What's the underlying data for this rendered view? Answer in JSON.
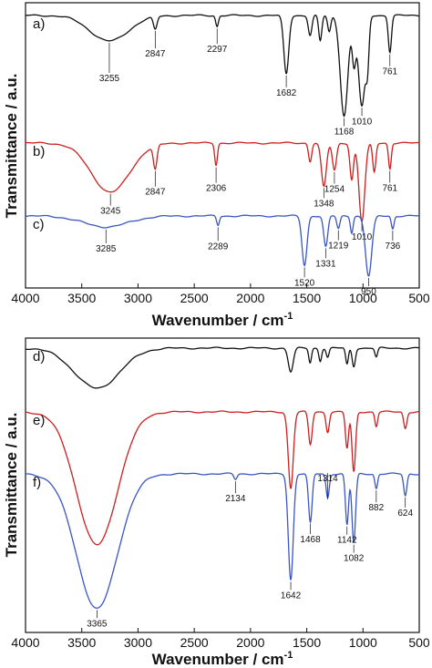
{
  "chart_data": [
    {
      "type": "line",
      "panel": "top",
      "xlabel": "Wavenumber / cm",
      "xlabel_sup": "-1",
      "ylabel": "Transmittance / a.u.",
      "xlim": [
        4000,
        500
      ],
      "xticks": [
        "4000",
        "3500",
        "3000",
        "2500",
        "2000",
        "1500",
        "1000",
        "500"
      ],
      "grid": false,
      "series": [
        {
          "name": "a)",
          "color": "#111111",
          "baseline": 0,
          "peaks": [
            [
              3255,
              28,
              170
            ],
            [
              2847,
              14,
              16
            ],
            [
              2297,
              12,
              12
            ],
            [
              1682,
              64,
              22
            ],
            [
              1470,
              22,
              16
            ],
            [
              1380,
              28,
              14
            ],
            [
              1300,
              18,
              14
            ],
            [
              1168,
              110,
              34
            ],
            [
              1080,
              48,
              16
            ],
            [
              1010,
              100,
              30
            ],
            [
              960,
              45,
              14
            ],
            [
              761,
              40,
              14
            ]
          ],
          "labels": [
            {
              "text": "3255",
              "x": 3255,
              "dy": 34
            },
            {
              "text": "2847",
              "x": 2847,
              "dy": 20
            },
            {
              "text": "2297",
              "x": 2297,
              "dy": 18
            },
            {
              "text": "1682",
              "x": 1682,
              "dy": 14
            },
            {
              "text": "1168",
              "x": 1168,
              "dy": 10
            },
            {
              "text": "1010",
              "x": 1010,
              "dy": 10
            },
            {
              "text": "761",
              "x": 761,
              "dy": 14
            }
          ]
        },
        {
          "name": "b)",
          "color": "#cc1f1f",
          "baseline": 0,
          "peaks": [
            [
              3245,
              54,
              170
            ],
            [
              2847,
              26,
              16
            ],
            [
              2306,
              24,
              12
            ],
            [
              1470,
              20,
              14
            ],
            [
              1348,
              48,
              22
            ],
            [
              1254,
              30,
              18
            ],
            [
              1100,
              40,
              16
            ],
            [
              1010,
              86,
              26
            ],
            [
              900,
              32,
              14
            ],
            [
              761,
              28,
              12
            ]
          ],
          "labels": [
            {
              "text": "3245",
              "x": 3245,
              "dy": 14
            },
            {
              "text": "2847",
              "x": 2847,
              "dy": 18
            },
            {
              "text": "2306",
              "x": 2306,
              "dy": 18
            },
            {
              "text": "1348",
              "x": 1348,
              "dy": 12
            },
            {
              "text": "1254",
              "x": 1254,
              "dy": 14
            },
            {
              "text": "1010",
              "x": 1010,
              "dy": 10
            },
            {
              "text": "761",
              "x": 761,
              "dy": 14
            }
          ]
        },
        {
          "name": "c)",
          "color": "#3a56c4",
          "baseline": 0,
          "peaks": [
            [
              3285,
              12,
              200
            ],
            [
              2289,
              10,
              12
            ],
            [
              1520,
              54,
              22
            ],
            [
              1331,
              34,
              18
            ],
            [
              1219,
              14,
              14
            ],
            [
              1100,
              18,
              12
            ],
            [
              950,
              66,
              28
            ],
            [
              736,
              14,
              12
            ]
          ],
          "labels": [
            {
              "text": "3285",
              "x": 3285,
              "dy": 16
            },
            {
              "text": "2289",
              "x": 2289,
              "dy": 16
            },
            {
              "text": "1520",
              "x": 1520,
              "dy": 12
            },
            {
              "text": "1331",
              "x": 1331,
              "dy": 12
            },
            {
              "text": "1219",
              "x": 1219,
              "dy": 12
            },
            {
              "text": "950",
              "x": 950,
              "dy": 10
            },
            {
              "text": "736",
              "x": 736,
              "dy": 12
            }
          ]
        }
      ]
    },
    {
      "type": "line",
      "panel": "bottom",
      "xlabel": "Wavenumber / cm",
      "xlabel_sup": "-1",
      "ylabel": "Transmittance / a.u.",
      "xlim": [
        4000,
        500
      ],
      "xticks": [
        "4000",
        "3500",
        "3000",
        "2500",
        "2000",
        "1500",
        "1000",
        "500"
      ],
      "grid": false,
      "series": [
        {
          "name": "d)",
          "color": "#111111",
          "baseline": 0,
          "peaks": [
            [
              3365,
              44,
              200
            ],
            [
              1642,
              26,
              22
            ],
            [
              1470,
              16,
              12
            ],
            [
              1380,
              14,
              12
            ],
            [
              1314,
              10,
              12
            ],
            [
              1142,
              18,
              12
            ],
            [
              1082,
              20,
              14
            ],
            [
              882,
              10,
              12
            ]
          ],
          "labels": []
        },
        {
          "name": "e)",
          "color": "#cc1f1f",
          "baseline": 0,
          "peaks": [
            [
              3365,
              146,
              180
            ],
            [
              1642,
              84,
              22
            ],
            [
              1468,
              36,
              16
            ],
            [
              1314,
              22,
              14
            ],
            [
              1142,
              40,
              14
            ],
            [
              1082,
              66,
              16
            ],
            [
              882,
              16,
              12
            ],
            [
              624,
              18,
              14
            ]
          ],
          "labels": []
        },
        {
          "name": "f)",
          "color": "#3a56c4",
          "baseline": 0,
          "peaks": [
            [
              3365,
              148,
              180
            ],
            [
              2134,
              6,
              14
            ],
            [
              1642,
              116,
              22
            ],
            [
              1468,
              54,
              16
            ],
            [
              1314,
              26,
              14
            ],
            [
              1142,
              56,
              14
            ],
            [
              1082,
              76,
              16
            ],
            [
              882,
              16,
              12
            ],
            [
              624,
              24,
              14
            ]
          ],
          "labels": [
            {
              "text": "3365",
              "x": 3365,
              "dy": 10
            },
            {
              "text": "2134",
              "x": 2134,
              "dy": 14
            },
            {
              "text": "1642",
              "x": 1642,
              "dy": 10
            },
            {
              "text": "1468",
              "x": 1468,
              "dy": 12
            },
            {
              "text": "1314",
              "x": 1314,
              "dy": -28
            },
            {
              "text": "1142",
              "x": 1142,
              "dy": 10
            },
            {
              "text": "1082",
              "x": 1082,
              "dy": 10
            },
            {
              "text": "882",
              "x": 882,
              "dy": 14
            },
            {
              "text": "624",
              "x": 624,
              "dy": 12
            }
          ]
        }
      ]
    }
  ]
}
